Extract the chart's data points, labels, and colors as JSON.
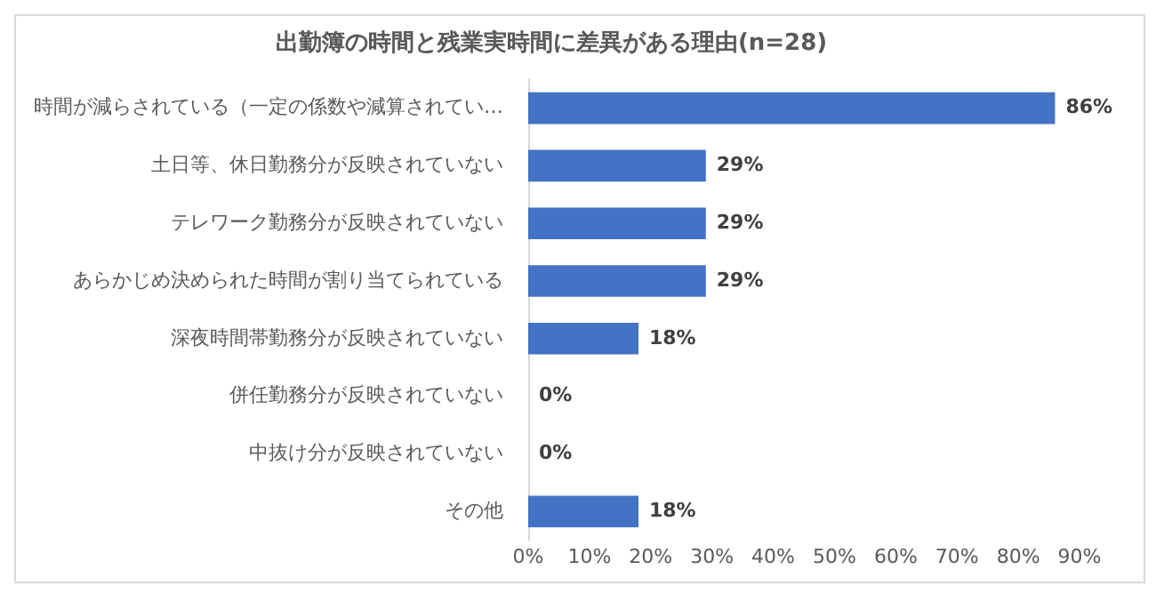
{
  "chart_data": {
    "type": "bar",
    "orientation": "horizontal",
    "title": "出勤簿の時間と残業実時間に差異がある理由(n=28)",
    "categories": [
      "時間が減らされている（一定の係数や減算されてい…",
      "土日等、休日勤務分が反映されていない",
      "テレワーク勤務分が反映されていない",
      "あらかじめ決められた時間が割り当てられている",
      "深夜時間帯勤務分が反映されていない",
      "併任勤務分が反映されていない",
      "中抜け分が反映されていない",
      "その他"
    ],
    "values": [
      86,
      29,
      29,
      29,
      18,
      0,
      0,
      18
    ],
    "value_labels": [
      "86%",
      "29%",
      "29%",
      "29%",
      "18%",
      "0%",
      "0%",
      "18%"
    ],
    "color": "#4472c4",
    "xlim": [
      0,
      90
    ],
    "xticks": [
      {
        "value": 0,
        "label": "0%"
      },
      {
        "value": 10,
        "label": "10%"
      },
      {
        "value": 20,
        "label": "20%"
      },
      {
        "value": 30,
        "label": "30%"
      },
      {
        "value": 40,
        "label": "40%"
      },
      {
        "value": 50,
        "label": "50%"
      },
      {
        "value": 60,
        "label": "60%"
      },
      {
        "value": 70,
        "label": "70%"
      },
      {
        "value": 80,
        "label": "80%"
      },
      {
        "value": 90,
        "label": "90%"
      }
    ]
  }
}
